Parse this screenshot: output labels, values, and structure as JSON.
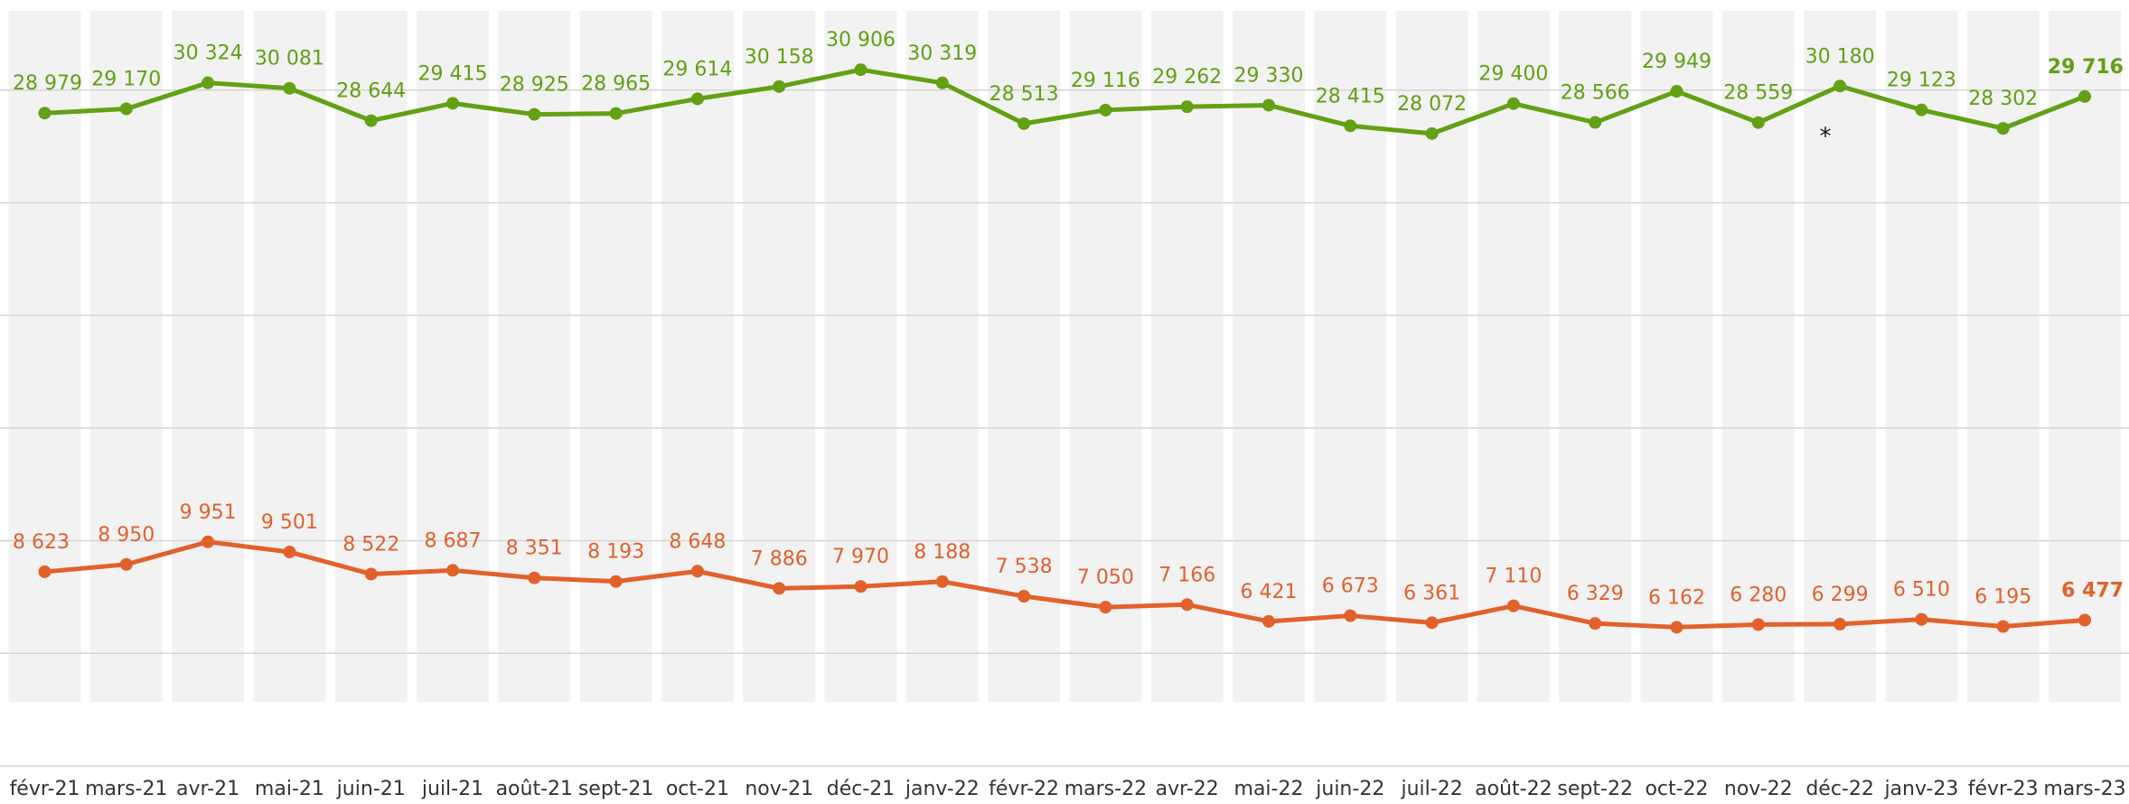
{
  "chart_data": {
    "type": "line",
    "categories": [
      "févr-21",
      "mars-21",
      "avr-21",
      "mai-21",
      "juin-21",
      "juil-21",
      "août-21",
      "sept-21",
      "oct-21",
      "nov-21",
      "déc-21",
      "janv-22",
      "févr-22",
      "mars-22",
      "avr-22",
      "mai-22",
      "juin-22",
      "juil-22",
      "août-22",
      "sept-22",
      "oct-22",
      "nov-22",
      "déc-22",
      "janv-23",
      "févr-23",
      "mars-23"
    ],
    "series": [
      {
        "color": "#62a014",
        "values": [
          28979,
          29170,
          30324,
          30081,
          28644,
          29415,
          28925,
          28965,
          29614,
          30158,
          30906,
          30319,
          28513,
          29116,
          29262,
          29330,
          28415,
          28072,
          29400,
          28566,
          29949,
          28559,
          30180,
          29123,
          28302,
          29716
        ],
        "value_labels": [
          "28 979",
          "29 170",
          "30 324",
          "30 081",
          "28 644",
          "29 415",
          "28 925",
          "28 965",
          "29 614",
          "30 158",
          "30 906",
          "30 319",
          "28 513",
          "29 116",
          "29 262",
          "29 330",
          "28 415",
          "28 072",
          "29 400",
          "28 566",
          "29 949",
          "28 559",
          "30 180",
          "29 123",
          "28 302",
          "29 716"
        ]
      },
      {
        "color": "#e2612b",
        "values": [
          8623,
          8950,
          9951,
          9501,
          8522,
          8687,
          8351,
          8193,
          8648,
          7886,
          7970,
          8188,
          7538,
          7050,
          7166,
          6421,
          6673,
          6361,
          7110,
          6329,
          6162,
          6280,
          6299,
          6510,
          6195,
          6477
        ],
        "value_labels": [
          "8 623",
          "8 950",
          "9 951",
          "9 501",
          "8 522",
          "8 687",
          "8 351",
          "8 193",
          "8 648",
          "7 886",
          "7 970",
          "8 188",
          "7 538",
          "7 050",
          "7 166",
          "6 421",
          "6 673",
          "6 361",
          "7 110",
          "6 329",
          "6 162",
          "6 280",
          "6 299",
          "6 510",
          "6 195",
          "6 477"
        ]
      }
    ],
    "annotation": "*",
    "ylim": [
      0,
      34000
    ],
    "yticks": [
      0,
      5000,
      10000,
      15000,
      20000,
      25000,
      30000
    ],
    "grid": true
  }
}
